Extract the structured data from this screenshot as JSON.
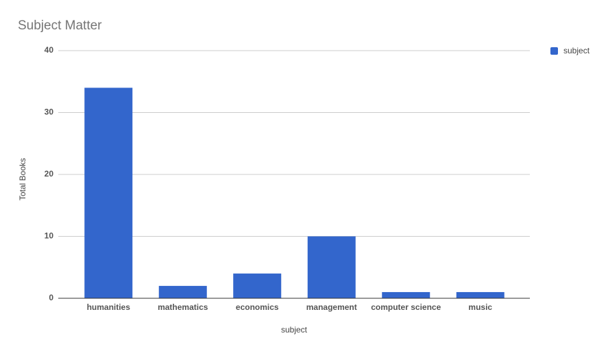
{
  "chart_data": {
    "type": "bar",
    "title": "Subject Matter",
    "x_label": "subject",
    "y_label": "Total Books",
    "categories": [
      "humanities",
      "mathematics",
      "economics",
      "management",
      "computer science",
      "music"
    ],
    "series": [
      {
        "name": "subject",
        "color": "#3366cc",
        "values": [
          34,
          2,
          4,
          10,
          1,
          1
        ]
      }
    ],
    "ylim": [
      0,
      40
    ],
    "yticks": [
      0,
      10,
      20,
      30,
      40
    ],
    "grid": true,
    "legend": "top-right"
  }
}
